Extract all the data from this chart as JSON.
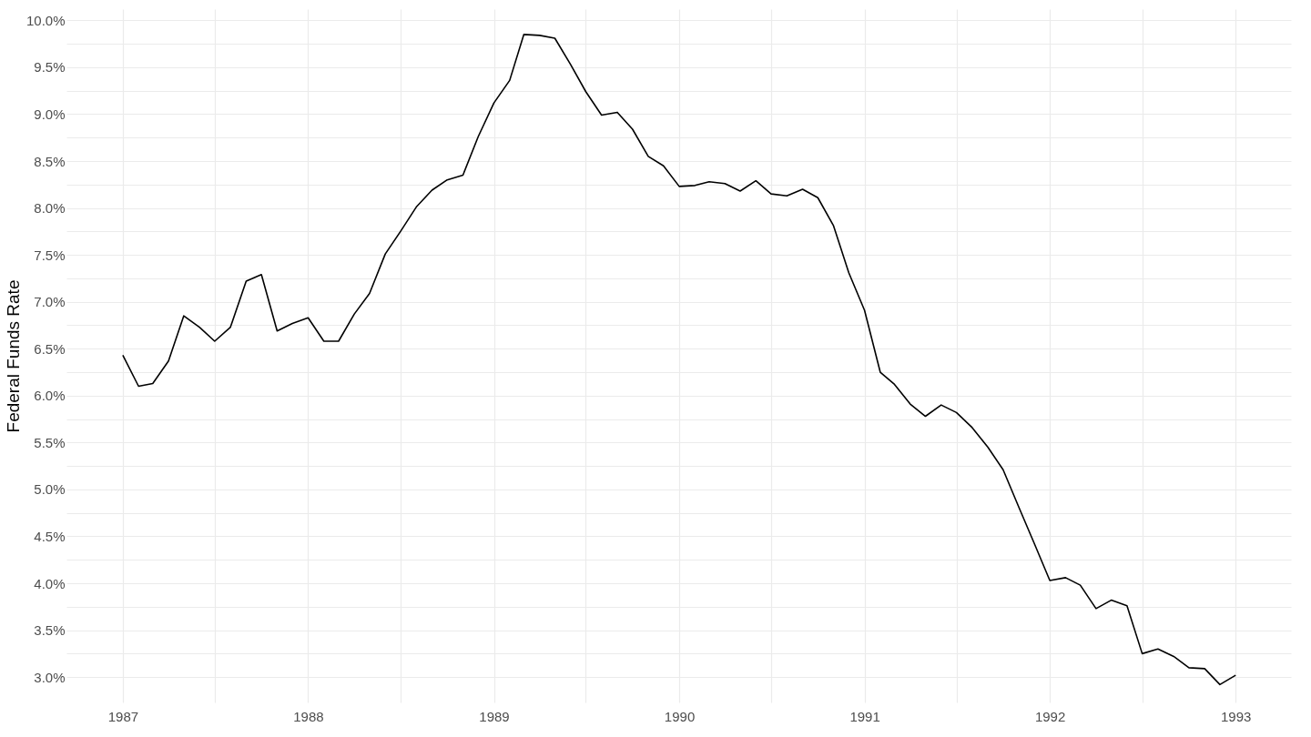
{
  "chart_data": {
    "type": "line",
    "ylabel": "Federal Funds Rate",
    "x": [
      "1987-01",
      "1987-02",
      "1987-03",
      "1987-04",
      "1987-05",
      "1987-06",
      "1987-07",
      "1987-08",
      "1987-09",
      "1987-10",
      "1987-11",
      "1987-12",
      "1988-01",
      "1988-02",
      "1988-03",
      "1988-04",
      "1988-05",
      "1988-06",
      "1988-07",
      "1988-08",
      "1988-09",
      "1988-10",
      "1988-11",
      "1988-12",
      "1989-01",
      "1989-02",
      "1989-03",
      "1989-04",
      "1989-05",
      "1989-06",
      "1989-07",
      "1989-08",
      "1989-09",
      "1989-10",
      "1989-11",
      "1989-12",
      "1990-01",
      "1990-02",
      "1990-03",
      "1990-04",
      "1990-05",
      "1990-06",
      "1990-07",
      "1990-08",
      "1990-09",
      "1990-10",
      "1990-11",
      "1990-12",
      "1991-01",
      "1991-02",
      "1991-03",
      "1991-04",
      "1991-05",
      "1991-06",
      "1991-07",
      "1991-08",
      "1991-09",
      "1991-10",
      "1991-11",
      "1991-12",
      "1992-01",
      "1992-02",
      "1992-03",
      "1992-04",
      "1992-05",
      "1992-06",
      "1992-07",
      "1992-08",
      "1992-09",
      "1992-10",
      "1992-11",
      "1992-12",
      "1993-01"
    ],
    "series": [
      {
        "color": "#000000",
        "values": [
          6.43,
          6.1,
          6.13,
          6.37,
          6.85,
          6.73,
          6.58,
          6.73,
          7.22,
          7.29,
          6.69,
          6.77,
          6.83,
          6.58,
          6.58,
          6.87,
          7.09,
          7.51,
          7.75,
          8.01,
          8.19,
          8.3,
          8.35,
          8.76,
          9.12,
          9.36,
          9.85,
          9.84,
          9.81,
          9.53,
          9.24,
          8.99,
          9.02,
          8.84,
          8.55,
          8.45,
          8.23,
          8.24,
          8.28,
          8.26,
          8.18,
          8.29,
          8.15,
          8.13,
          8.2,
          8.11,
          7.81,
          7.31,
          6.91,
          6.25,
          6.12,
          5.91,
          5.78,
          5.9,
          5.82,
          5.66,
          5.45,
          5.21,
          4.81,
          4.43,
          4.03,
          4.06,
          3.98,
          3.73,
          3.82,
          3.76,
          3.25,
          3.3,
          3.22,
          3.1,
          3.09,
          2.92,
          3.02
        ]
      }
    ],
    "xlim": [
      "1986-09-12",
      "1993-04-20"
    ],
    "xticks": [
      "1987",
      {
        "value": "1987-07",
        "label": null
      },
      "1988",
      {
        "value": "1988-07",
        "label": null
      },
      "1989",
      {
        "value": "1989-07",
        "label": null
      },
      "1990",
      {
        "value": "1990-07",
        "label": null
      },
      "1991",
      {
        "value": "1991-07",
        "label": null
      },
      "1992",
      {
        "value": "1992-07",
        "label": null
      },
      "1993"
    ],
    "ylim": [
      2.73,
      10.12
    ],
    "yticks": [
      {
        "value": 3,
        "label": "3.0%"
      },
      {
        "value": 3.25,
        "label": null
      },
      {
        "value": 3.5,
        "label": "3.5%"
      },
      {
        "value": 3.75,
        "label": null
      },
      {
        "value": 4,
        "label": "4.0%"
      },
      {
        "value": 4.25,
        "label": null
      },
      {
        "value": 4.5,
        "label": "4.5%"
      },
      {
        "value": 4.75,
        "label": null
      },
      {
        "value": 5,
        "label": "5.0%"
      },
      {
        "value": 5.25,
        "label": null
      },
      {
        "value": 5.5,
        "label": "5.5%"
      },
      {
        "value": 5.75,
        "label": null
      },
      {
        "value": 6,
        "label": "6.0%"
      },
      {
        "value": 6.25,
        "label": null
      },
      {
        "value": 6.5,
        "label": "6.5%"
      },
      {
        "value": 6.75,
        "label": null
      },
      {
        "value": 7,
        "label": "7.0%"
      },
      {
        "value": 7.25,
        "label": null
      },
      {
        "value": 7.5,
        "label": "7.5%"
      },
      {
        "value": 7.75,
        "label": null
      },
      {
        "value": 8,
        "label": "8.0%"
      },
      {
        "value": 8.25,
        "label": null
      },
      {
        "value": 8.5,
        "label": "8.5%"
      },
      {
        "value": 8.75,
        "label": null
      },
      {
        "value": 9,
        "label": "9.0%"
      },
      {
        "value": 9.25,
        "label": null
      },
      {
        "value": 9.5,
        "label": "9.5%"
      },
      {
        "value": 9.75,
        "label": null
      },
      {
        "value": 10,
        "label": "10.0%"
      }
    ],
    "grid": true,
    "line_style": "solid",
    "marker": "none"
  }
}
